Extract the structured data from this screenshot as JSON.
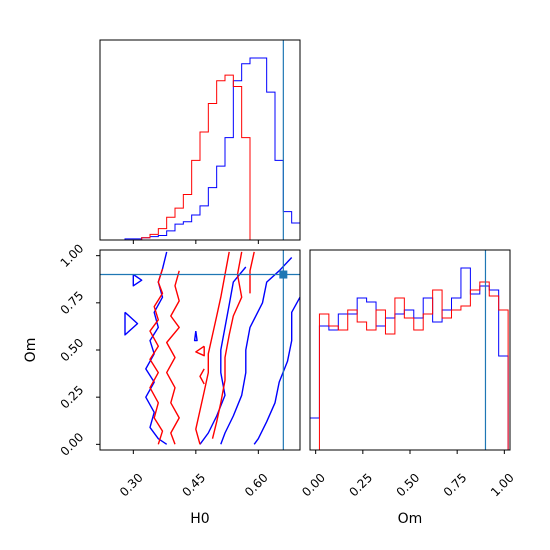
{
  "chart_data": {
    "type": "corner",
    "parameters": [
      "H0",
      "Om"
    ],
    "truth": {
      "H0": 0.66,
      "Om": 0.9
    },
    "colors": {
      "series_a": "#0000ff",
      "series_b": "#ff0000",
      "truth": "#1f77b4"
    },
    "grid": false,
    "legend": "none",
    "panels": {
      "h0_hist": {
        "xlim": [
          0.22,
          0.7
        ],
        "ticks": [
          0.3,
          0.45,
          0.6
        ],
        "bins": [
          0.22,
          0.24,
          0.26,
          0.28,
          0.3,
          0.32,
          0.34,
          0.36,
          0.38,
          0.4,
          0.42,
          0.44,
          0.46,
          0.48,
          0.5,
          0.52,
          0.54,
          0.56,
          0.58,
          0.6,
          0.62,
          0.64,
          0.66,
          0.68,
          0.7
        ],
        "series": [
          {
            "color": "series_a",
            "counts": [
              0,
              0,
              0,
              1,
              1,
              2,
              3,
              4,
              8,
              14,
              16,
              22,
              30,
              46,
              65,
              90,
              140,
              155,
              160,
              160,
              130,
              70,
              25,
              15
            ]
          },
          {
            "color": "series_b",
            "counts": [
              0,
              0,
              0,
              0,
              0,
              2,
              5,
              10,
              20,
              28,
              40,
              70,
              95,
              120,
              140,
              145,
              135,
              90,
              0,
              0,
              0,
              0,
              0,
              0
            ]
          }
        ]
      },
      "om_hist": {
        "xlim": [
          -0.03,
          1.03
        ],
        "ticks": [
          "0.00",
          "0.25",
          "0.50",
          "0.75",
          "1.00"
        ],
        "bins": [
          -0.03,
          0.02,
          0.07,
          0.12,
          0.17,
          0.22,
          0.27,
          0.32,
          0.37,
          0.42,
          0.47,
          0.52,
          0.57,
          0.62,
          0.67,
          0.72,
          0.77,
          0.82,
          0.87,
          0.92,
          0.97,
          1.02
        ],
        "series": [
          {
            "color": "series_a",
            "counts": [
              0.16,
              0.62,
              0.6,
              0.68,
              0.68,
              0.76,
              0.74,
              0.62,
              0.66,
              0.68,
              0.7,
              0.66,
              0.76,
              0.64,
              0.7,
              0.76,
              0.91,
              0.78,
              0.82,
              0.8,
              0.47
            ]
          },
          {
            "color": "series_b",
            "counts": [
              0,
              0.68,
              0.62,
              0.6,
              0.7,
              0.64,
              0.6,
              0.7,
              0.58,
              0.76,
              0.66,
              0.6,
              0.68,
              0.8,
              0.66,
              0.7,
              0.72,
              0.8,
              0.84,
              0.77,
              0.7
            ]
          }
        ]
      },
      "joint": {
        "xlim": [
          0.22,
          0.7
        ],
        "ylim": [
          -0.03,
          1.03
        ],
        "xticks": [
          "0.30",
          "0.45",
          "0.60"
        ],
        "yticks": [
          "0.00",
          "0.25",
          "0.50",
          "0.75",
          "1.00"
        ],
        "xlabel": "H0",
        "ylabel": "Om",
        "contours": [
          {
            "color": "series_a",
            "points": [
              [
                0.38,
                1.02
              ],
              [
                0.37,
                0.93
              ],
              [
                0.36,
                0.86
              ],
              [
                0.37,
                0.78
              ],
              [
                0.35,
                0.7
              ],
              [
                0.36,
                0.62
              ],
              [
                0.34,
                0.55
              ],
              [
                0.35,
                0.48
              ],
              [
                0.33,
                0.4
              ],
              [
                0.35,
                0.33
              ],
              [
                0.33,
                0.25
              ],
              [
                0.35,
                0.17
              ],
              [
                0.34,
                0.09
              ],
              [
                0.36,
                0.03
              ],
              [
                0.38,
                0.0
              ]
            ]
          },
          {
            "color": "series_a",
            "points": [
              [
                0.57,
                0.94
              ],
              [
                0.54,
                0.86
              ],
              [
                0.53,
                0.74
              ],
              [
                0.52,
                0.62
              ],
              [
                0.51,
                0.5
              ],
              [
                0.51,
                0.38
              ],
              [
                0.52,
                0.26
              ],
              [
                0.5,
                0.15
              ],
              [
                0.48,
                0.06
              ],
              [
                0.46,
                0.0
              ]
            ]
          },
          {
            "color": "series_a",
            "points": [
              [
                0.68,
                0.99
              ],
              [
                0.65,
                0.92
              ],
              [
                0.62,
                0.86
              ],
              [
                0.61,
                0.75
              ],
              [
                0.58,
                0.62
              ],
              [
                0.57,
                0.5
              ],
              [
                0.57,
                0.38
              ],
              [
                0.56,
                0.26
              ],
              [
                0.54,
                0.15
              ],
              [
                0.52,
                0.06
              ],
              [
                0.51,
                0.0
              ]
            ]
          },
          {
            "color": "series_a",
            "points": [
              [
                0.7,
                0.78
              ],
              [
                0.68,
                0.7
              ],
              [
                0.68,
                0.55
              ],
              [
                0.67,
                0.44
              ],
              [
                0.65,
                0.33
              ],
              [
                0.64,
                0.22
              ],
              [
                0.62,
                0.12
              ],
              [
                0.6,
                0.03
              ],
              [
                0.59,
                0.0
              ]
            ]
          },
          {
            "color": "series_a",
            "points": [
              [
                0.3,
                0.9
              ],
              [
                0.32,
                0.87
              ],
              [
                0.3,
                0.84
              ],
              [
                0.3,
                0.9
              ]
            ]
          },
          {
            "color": "series_a",
            "points": [
              [
                0.28,
                0.7
              ],
              [
                0.31,
                0.64
              ],
              [
                0.28,
                0.58
              ],
              [
                0.28,
                0.7
              ]
            ]
          },
          {
            "color": "series_a",
            "points": [
              [
                0.45,
                0.6
              ],
              [
                0.453,
                0.55
              ],
              [
                0.447,
                0.55
              ],
              [
                0.45,
                0.6
              ]
            ]
          },
          {
            "color": "series_b",
            "points": [
              [
                0.37,
                0.93
              ],
              [
                0.36,
                0.86
              ],
              [
                0.37,
                0.8
              ],
              [
                0.35,
                0.73
              ],
              [
                0.36,
                0.66
              ],
              [
                0.34,
                0.6
              ],
              [
                0.36,
                0.52
              ],
              [
                0.34,
                0.45
              ],
              [
                0.36,
                0.38
              ],
              [
                0.34,
                0.3
              ],
              [
                0.36,
                0.22
              ],
              [
                0.35,
                0.14
              ],
              [
                0.37,
                0.07
              ],
              [
                0.36,
                0.0
              ]
            ]
          },
          {
            "color": "series_b",
            "points": [
              [
                0.41,
                0.92
              ],
              [
                0.4,
                0.84
              ],
              [
                0.41,
                0.76
              ],
              [
                0.39,
                0.68
              ],
              [
                0.41,
                0.62
              ],
              [
                0.38,
                0.54
              ],
              [
                0.4,
                0.46
              ],
              [
                0.38,
                0.38
              ],
              [
                0.4,
                0.3
              ],
              [
                0.39,
                0.22
              ],
              [
                0.41,
                0.14
              ],
              [
                0.39,
                0.06
              ],
              [
                0.4,
                0.0
              ]
            ]
          },
          {
            "color": "series_b",
            "points": [
              [
                0.53,
                1.02
              ],
              [
                0.52,
                0.9
              ],
              [
                0.51,
                0.78
              ],
              [
                0.5,
                0.68
              ],
              [
                0.49,
                0.58
              ],
              [
                0.48,
                0.48
              ],
              [
                0.48,
                0.38
              ],
              [
                0.47,
                0.28
              ],
              [
                0.46,
                0.18
              ],
              [
                0.45,
                0.08
              ],
              [
                0.46,
                0.0
              ]
            ]
          },
          {
            "color": "series_b",
            "points": [
              [
                0.56,
                1.02
              ],
              [
                0.55,
                0.9
              ],
              [
                0.56,
                0.78
              ],
              [
                0.54,
                0.68
              ],
              [
                0.53,
                0.58
              ],
              [
                0.52,
                0.46
              ],
              [
                0.52,
                0.34
              ],
              [
                0.51,
                0.22
              ],
              [
                0.5,
                0.12
              ],
              [
                0.49,
                0.03
              ]
            ]
          },
          {
            "color": "series_b",
            "points": [
              [
                0.59,
                1.02
              ],
              [
                0.58,
                0.92
              ],
              [
                0.58,
                0.8
              ]
            ]
          },
          {
            "color": "series_b",
            "points": [
              [
                0.47,
                0.52
              ],
              [
                0.45,
                0.49
              ],
              [
                0.47,
                0.47
              ],
              [
                0.47,
                0.52
              ]
            ]
          },
          {
            "color": "series_b",
            "points": [
              [
                0.47,
                0.4
              ],
              [
                0.46,
                0.36
              ],
              [
                0.47,
                0.32
              ]
            ]
          }
        ]
      }
    }
  }
}
